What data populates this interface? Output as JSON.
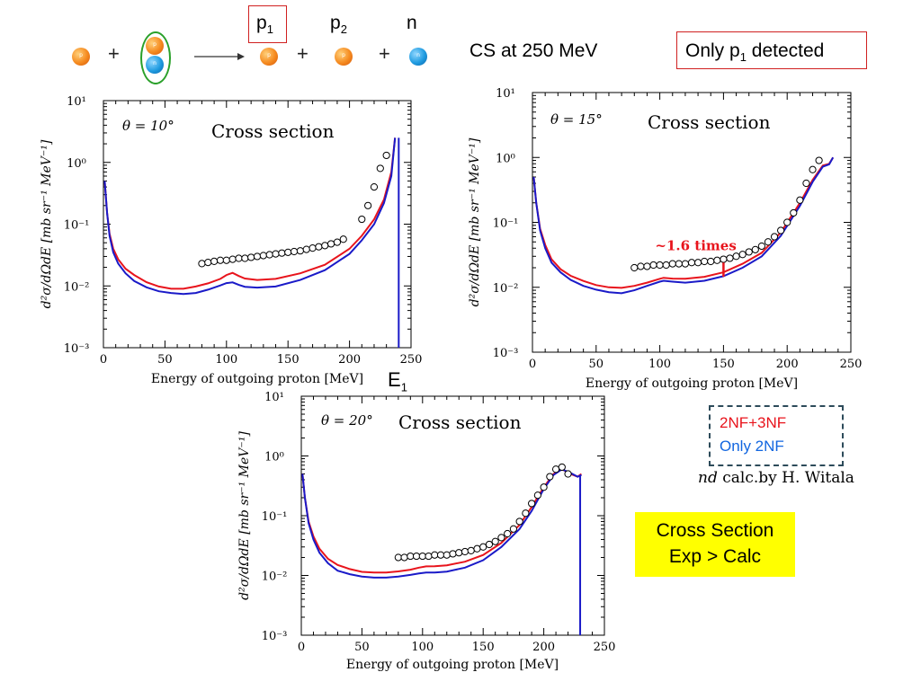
{
  "reaction": {
    "p1_label": "p",
    "p1_sub": "1",
    "p2_label": "p",
    "p2_sub": "2",
    "n_label": "n",
    "plus": "+",
    "proton_mark": "p",
    "neutron_mark": "n"
  },
  "header": {
    "cs_text": "CS at 250 MeV",
    "only_prefix": "Only p",
    "only_sub": "1",
    "only_suffix": " detected"
  },
  "e1_label": "E",
  "e1_sub": "1",
  "legend": {
    "item1": "2NF+3NF",
    "item2": "Only 2NF",
    "item1_color": "#e8141c",
    "item2_color": "#1266e0"
  },
  "credit": {
    "nd": "nd",
    "rest": " calc.by H. Witala"
  },
  "conclusion": {
    "line1": "Cross Section",
    "line2": "Exp > Calc"
  },
  "annotation": {
    "text": "~1.6 times",
    "color": "#e8141c"
  },
  "colors": {
    "red": "#e8141c",
    "blue": "#1a1ac8"
  },
  "chart_data": [
    {
      "type": "line",
      "panel_label": "θ = 10°",
      "title": "Cross section",
      "xlabel": "Energy of outgoing proton [MeV]",
      "ylabel": "d²σ/dΩdE [mb sr⁻¹ MeV⁻¹]",
      "xlim": [
        0,
        250
      ],
      "ylim": [
        0.001,
        10
      ],
      "yscale": "log",
      "xticks": [
        "0",
        "50",
        "100",
        "150",
        "200",
        "250"
      ],
      "yticks": [
        "10⁻³",
        "10⁻²",
        "10⁻¹",
        "10⁰",
        "10¹"
      ],
      "series": [
        {
          "color": "red",
          "x": [
            1,
            3,
            5,
            8,
            12,
            18,
            25,
            35,
            45,
            55,
            65,
            75,
            85,
            95,
            100,
            105,
            110,
            115,
            125,
            140,
            160,
            180,
            200,
            210,
            220,
            228,
            234,
            237
          ],
          "y": [
            0.5,
            0.15,
            0.07,
            0.04,
            0.027,
            0.019,
            0.015,
            0.0115,
            0.0098,
            0.009,
            0.009,
            0.0098,
            0.011,
            0.013,
            0.015,
            0.0163,
            0.0145,
            0.0132,
            0.0125,
            0.013,
            0.016,
            0.022,
            0.04,
            0.065,
            0.12,
            0.25,
            0.7,
            2.5
          ]
        },
        {
          "color": "blue",
          "x": [
            1,
            3,
            5,
            8,
            12,
            18,
            25,
            35,
            45,
            55,
            65,
            75,
            85,
            95,
            100,
            105,
            110,
            115,
            125,
            140,
            160,
            180,
            200,
            210,
            220,
            228,
            234,
            237
          ],
          "y": [
            0.5,
            0.15,
            0.065,
            0.035,
            0.023,
            0.016,
            0.012,
            0.0095,
            0.0082,
            0.0077,
            0.0074,
            0.0077,
            0.0087,
            0.0102,
            0.0111,
            0.0114,
            0.0104,
            0.0097,
            0.0094,
            0.0098,
            0.0125,
            0.018,
            0.033,
            0.055,
            0.1,
            0.22,
            0.6,
            2.5
          ]
        }
      ],
      "points": {
        "x": [
          80,
          85,
          90,
          95,
          100,
          105,
          110,
          115,
          120,
          125,
          130,
          135,
          140,
          145,
          150,
          155,
          160,
          165,
          170,
          175,
          180,
          185,
          190,
          195,
          210,
          215,
          220,
          225,
          230
        ],
        "y": [
          0.023,
          0.024,
          0.025,
          0.026,
          0.026,
          0.027,
          0.028,
          0.028,
          0.029,
          0.03,
          0.031,
          0.032,
          0.033,
          0.034,
          0.035,
          0.036,
          0.037,
          0.039,
          0.041,
          0.043,
          0.045,
          0.048,
          0.051,
          0.057,
          0.12,
          0.2,
          0.4,
          0.8,
          1.3
        ]
      },
      "drop_line_x": 240
    },
    {
      "type": "line",
      "panel_label": "θ = 15°",
      "title": "Cross section",
      "xlabel": "Energy of outgoing proton [MeV]",
      "ylabel": "d²σ/dΩdE [mb sr⁻¹ MeV⁻¹]",
      "xlim": [
        0,
        250
      ],
      "ylim": [
        0.001,
        10
      ],
      "yscale": "log",
      "xticks": [
        "0",
        "50",
        "100",
        "150",
        "200",
        "250"
      ],
      "yticks": [
        "10⁻³",
        "10⁻²",
        "10⁻¹",
        "10⁰",
        "10¹"
      ],
      "series": [
        {
          "color": "red",
          "x": [
            1,
            3,
            6,
            10,
            15,
            22,
            30,
            40,
            50,
            60,
            70,
            80,
            90,
            100,
            103,
            110,
            120,
            135,
            150,
            165,
            180,
            195,
            210,
            220,
            228,
            233,
            236
          ],
          "y": [
            0.5,
            0.2,
            0.08,
            0.045,
            0.027,
            0.019,
            0.015,
            0.0125,
            0.0108,
            0.01,
            0.0098,
            0.0105,
            0.0118,
            0.0135,
            0.014,
            0.0136,
            0.0135,
            0.0145,
            0.017,
            0.023,
            0.034,
            0.07,
            0.2,
            0.45,
            0.75,
            0.8,
            1.0
          ]
        },
        {
          "color": "blue",
          "x": [
            1,
            3,
            6,
            10,
            15,
            22,
            30,
            40,
            50,
            60,
            70,
            80,
            90,
            100,
            103,
            110,
            120,
            135,
            150,
            165,
            180,
            195,
            210,
            220,
            228,
            233,
            236
          ],
          "y": [
            0.5,
            0.2,
            0.075,
            0.04,
            0.024,
            0.017,
            0.013,
            0.0105,
            0.0092,
            0.0084,
            0.0081,
            0.009,
            0.0105,
            0.0122,
            0.0126,
            0.0122,
            0.0118,
            0.0126,
            0.0148,
            0.02,
            0.03,
            0.062,
            0.18,
            0.42,
            0.72,
            0.78,
            1.0
          ]
        }
      ],
      "points": {
        "x": [
          80,
          85,
          90,
          95,
          100,
          105,
          110,
          115,
          120,
          125,
          130,
          135,
          140,
          145,
          150,
          155,
          160,
          165,
          170,
          175,
          180,
          185,
          190,
          195,
          200,
          205,
          210,
          215,
          220,
          225
        ],
        "y": [
          0.02,
          0.021,
          0.021,
          0.022,
          0.022,
          0.022,
          0.023,
          0.023,
          0.023,
          0.024,
          0.024,
          0.025,
          0.025,
          0.026,
          0.027,
          0.028,
          0.03,
          0.032,
          0.035,
          0.038,
          0.043,
          0.05,
          0.06,
          0.075,
          0.1,
          0.14,
          0.22,
          0.4,
          0.65,
          0.9
        ]
      },
      "annotation": {
        "x": 150,
        "y_low": 0.0145,
        "y_high": 0.024,
        "text": "~1.6 times"
      }
    },
    {
      "type": "line",
      "panel_label": "θ = 20°",
      "title": "Cross section",
      "xlabel": "Energy of outgoing proton [MeV]",
      "ylabel": "d²σ/dΩdE [mb sr⁻¹ MeV⁻¹]",
      "xlim": [
        0,
        250
      ],
      "ylim": [
        0.001,
        10
      ],
      "yscale": "log",
      "xticks": [
        "0",
        "50",
        "100",
        "150",
        "200",
        "250"
      ],
      "yticks": [
        "10⁻³",
        "10⁻²",
        "10⁻¹",
        "10⁰",
        "10¹"
      ],
      "series": [
        {
          "color": "red",
          "x": [
            1,
            3,
            6,
            10,
            15,
            22,
            30,
            40,
            50,
            60,
            70,
            80,
            90,
            97,
            103,
            110,
            120,
            135,
            150,
            165,
            180,
            190,
            200,
            208,
            215,
            222,
            228,
            231
          ],
          "y": [
            0.5,
            0.2,
            0.08,
            0.045,
            0.028,
            0.019,
            0.015,
            0.0128,
            0.0115,
            0.0112,
            0.0112,
            0.0117,
            0.0125,
            0.0135,
            0.0142,
            0.0143,
            0.0148,
            0.017,
            0.022,
            0.035,
            0.07,
            0.14,
            0.3,
            0.5,
            0.6,
            0.5,
            0.45,
            0.5
          ]
        },
        {
          "color": "blue",
          "x": [
            1,
            3,
            6,
            10,
            15,
            22,
            30,
            40,
            50,
            60,
            70,
            80,
            90,
            97,
            103,
            110,
            120,
            135,
            150,
            165,
            180,
            190,
            200,
            208,
            215,
            222,
            228,
            231
          ],
          "y": [
            0.5,
            0.2,
            0.075,
            0.04,
            0.024,
            0.016,
            0.012,
            0.0105,
            0.0096,
            0.0092,
            0.0092,
            0.0096,
            0.0102,
            0.0108,
            0.0112,
            0.0112,
            0.0116,
            0.0135,
            0.018,
            0.03,
            0.06,
            0.12,
            0.28,
            0.48,
            0.6,
            0.52,
            0.45,
            0.48
          ]
        }
      ],
      "points": {
        "x": [
          80,
          85,
          90,
          95,
          100,
          105,
          110,
          115,
          120,
          125,
          130,
          135,
          140,
          145,
          150,
          155,
          160,
          165,
          170,
          175,
          180,
          185,
          190,
          195,
          200,
          205,
          210,
          215,
          220
        ],
        "y": [
          0.02,
          0.02,
          0.021,
          0.021,
          0.021,
          0.021,
          0.022,
          0.022,
          0.022,
          0.023,
          0.024,
          0.025,
          0.026,
          0.028,
          0.03,
          0.033,
          0.037,
          0.043,
          0.05,
          0.06,
          0.08,
          0.11,
          0.16,
          0.22,
          0.3,
          0.45,
          0.6,
          0.65,
          0.5
        ]
      },
      "drop_line_x": 230
    }
  ]
}
